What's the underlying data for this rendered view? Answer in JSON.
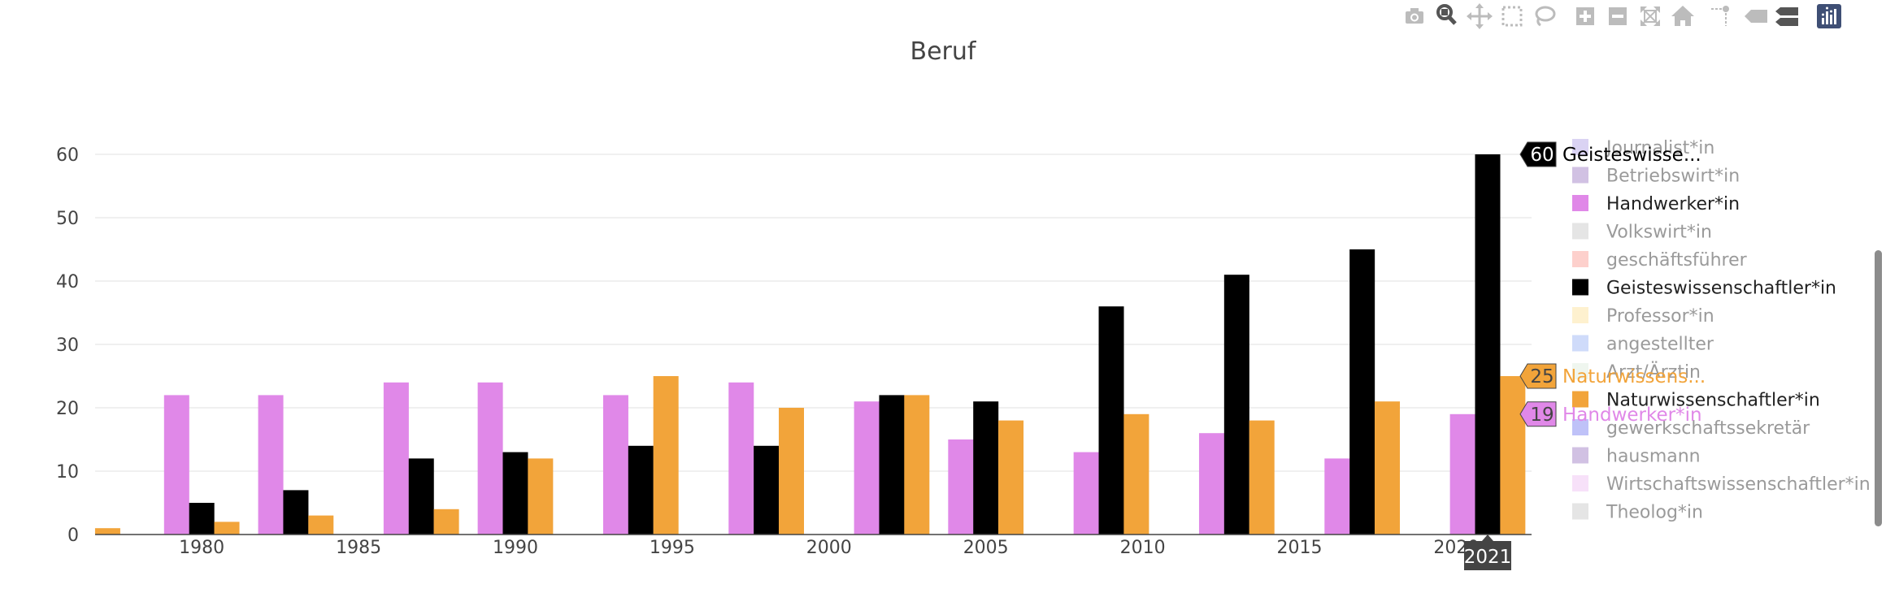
{
  "chart_data": {
    "type": "bar",
    "title": "Beruf",
    "x_ticks": [
      "1980",
      "1985",
      "1990",
      "1995",
      "2000",
      "2005",
      "2010",
      "2015",
      "2020"
    ],
    "y_ticks": [
      "0",
      "10",
      "20",
      "30",
      "40",
      "50",
      "60"
    ],
    "xlim": [
      1976.6,
      2022.4
    ],
    "ylim": [
      0,
      60
    ],
    "grid": true,
    "legend_position": "right",
    "series": [
      {
        "name": "Handwerker*in",
        "color": "#e088e8",
        "points": [
          [
            1979.2,
            22
          ],
          [
            1982.2,
            22
          ],
          [
            1986.2,
            24
          ],
          [
            1989.2,
            24
          ],
          [
            1993.2,
            22
          ],
          [
            1997.2,
            24
          ],
          [
            2001.2,
            21
          ],
          [
            2004.2,
            15
          ],
          [
            2008.2,
            13
          ],
          [
            2012.2,
            16
          ],
          [
            2016.2,
            12
          ],
          [
            2020.2,
            19
          ]
        ]
      },
      {
        "name": "Geisteswissenschaftler*in",
        "color": "#000000",
        "points": [
          [
            1980.0,
            5
          ],
          [
            1983.0,
            7
          ],
          [
            1987.0,
            12
          ],
          [
            1990.0,
            13
          ],
          [
            1994.0,
            14
          ],
          [
            1998.0,
            14
          ],
          [
            2002.0,
            22
          ],
          [
            2005.0,
            21
          ],
          [
            2009.0,
            36
          ],
          [
            2013.0,
            41
          ],
          [
            2017.0,
            45
          ],
          [
            2021.0,
            60
          ]
        ]
      },
      {
        "name": "Naturwissenschaftler*in",
        "color": "#f2a43a",
        "points": [
          [
            1977.0,
            1
          ],
          [
            1980.8,
            2
          ],
          [
            1983.8,
            3
          ],
          [
            1987.8,
            4
          ],
          [
            1990.8,
            12
          ],
          [
            1994.8,
            25
          ],
          [
            1998.8,
            20
          ],
          [
            2002.8,
            22
          ],
          [
            2005.8,
            18
          ],
          [
            2009.8,
            19
          ],
          [
            2013.8,
            18
          ],
          [
            2017.8,
            21
          ],
          [
            2021.8,
            25
          ]
        ]
      }
    ],
    "legend": [
      {
        "label": "Journalist*in",
        "color": "#b6a8e8",
        "active": false
      },
      {
        "label": "Betriebswirt*in",
        "color": "#a383c8",
        "active": false
      },
      {
        "label": "Handwerker*in",
        "color": "#e088e8",
        "active": true
      },
      {
        "label": "Volkswirt*in",
        "color": "#cccccc",
        "active": false
      },
      {
        "label": "geschäftsführer",
        "color": "#fca19a",
        "active": false
      },
      {
        "label": "Geisteswissenschaftler*in",
        "color": "#000000",
        "active": true
      },
      {
        "label": "Professor*in",
        "color": "#fde3a0",
        "active": false
      },
      {
        "label": "angestellter",
        "color": "#9fb8f5",
        "active": false
      },
      {
        "label": "Arzt/Ärztin",
        "color": "#e0ede0",
        "active": false
      },
      {
        "label": "Naturwissenschaftler*in",
        "color": "#f2a43a",
        "active": true
      },
      {
        "label": "gewerkschaftssekretär",
        "color": "#7f86f2",
        "active": false
      },
      {
        "label": "hausmann",
        "color": "#a383c8",
        "active": false
      },
      {
        "label": "Wirtschaftswissenschaftler*in",
        "color": "#f0c4f4",
        "active": false
      },
      {
        "label": "Theolog*in",
        "color": "#cccccc",
        "active": false
      }
    ],
    "hover": {
      "x_label": "2021",
      "labels": [
        {
          "value": "60",
          "name": "Geisteswisse...",
          "y": 60,
          "bg": "#000000",
          "text_color": "#ffffff",
          "name_color": "#000000"
        },
        {
          "value": "25",
          "name": "Naturwissens...",
          "y": 25,
          "bg": "#f2a43a",
          "text_color": "#444444",
          "name_color": "#f2a43a"
        },
        {
          "value": "19",
          "name": "Handwerker*in",
          "y": 19,
          "bg": "#e088e8",
          "text_color": "#444444",
          "name_color": "#e088e8"
        }
      ]
    }
  },
  "modebar": [
    {
      "name": "camera-icon",
      "active": false
    },
    {
      "name": "zoom-icon",
      "active": true
    },
    {
      "name": "pan-icon",
      "active": false
    },
    {
      "name": "box-select-icon",
      "active": false
    },
    {
      "name": "lasso-select-icon",
      "active": false
    },
    {
      "name": "zoom-in-icon",
      "active": false
    },
    {
      "name": "zoom-out-icon",
      "active": false
    },
    {
      "name": "autoscale-icon",
      "active": false
    },
    {
      "name": "reset-axes-icon",
      "active": false
    },
    {
      "name": "spike-lines-icon",
      "active": false
    },
    {
      "name": "hover-closest-icon",
      "active": false
    },
    {
      "name": "hover-compare-icon",
      "active": false
    },
    {
      "name": "plotly-logo-icon",
      "active": false
    }
  ]
}
